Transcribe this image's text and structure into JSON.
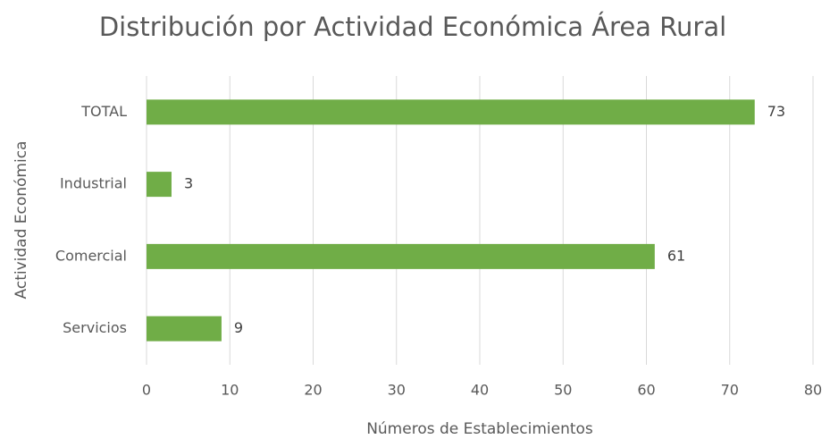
{
  "chart_data": {
    "type": "barh",
    "title": "Distribución por Actividad Económica Área Rural",
    "x_label": "Números de Establecimientos",
    "y_label": "Actividad Económica",
    "categories": [
      "TOTAL",
      "Industrial",
      "Comercial",
      "Servicios"
    ],
    "values": [
      73,
      3,
      61,
      9
    ],
    "color": "#70ad47",
    "xlim": [
      0,
      80
    ],
    "xticks": [
      0,
      10,
      20,
      30,
      40,
      50,
      60,
      70,
      80
    ],
    "grid": true
  }
}
